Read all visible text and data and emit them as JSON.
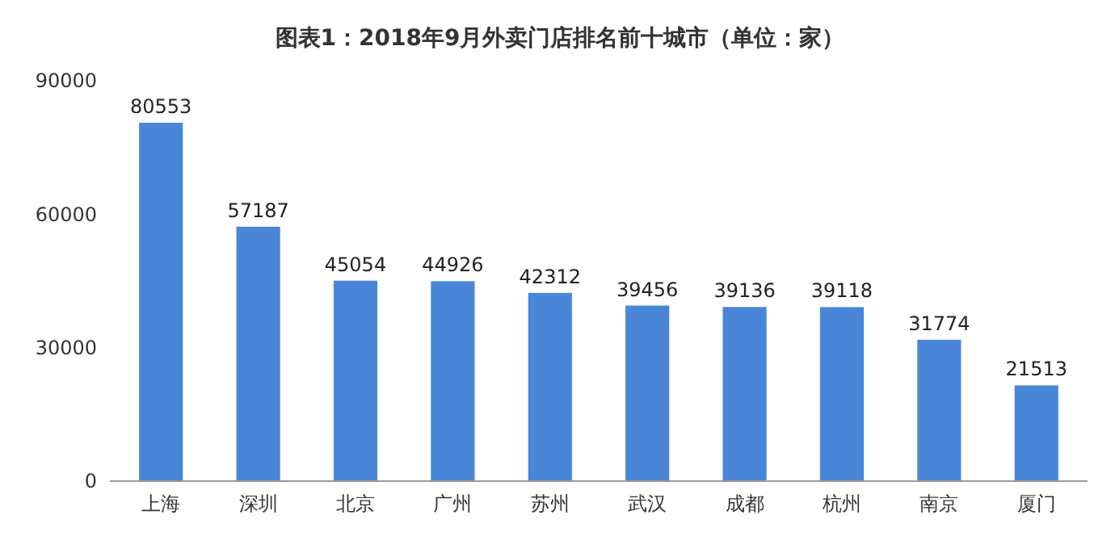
{
  "chart_data": {
    "type": "bar",
    "title": "图表1：2018年9月外卖门店排名前十城市（单位：家）",
    "categories": [
      "上海",
      "深圳",
      "北京",
      "广州",
      "苏州",
      "武汉",
      "成都",
      "杭州",
      "南京",
      "厦门"
    ],
    "values": [
      80553,
      57187,
      45054,
      44926,
      42312,
      39456,
      39136,
      39118,
      31774,
      21513
    ],
    "color": "#4a86d8",
    "ylim": [
      0,
      90000
    ],
    "yticks": [
      0,
      30000,
      60000,
      90000
    ],
    "data_labels": true,
    "grid": false
  }
}
